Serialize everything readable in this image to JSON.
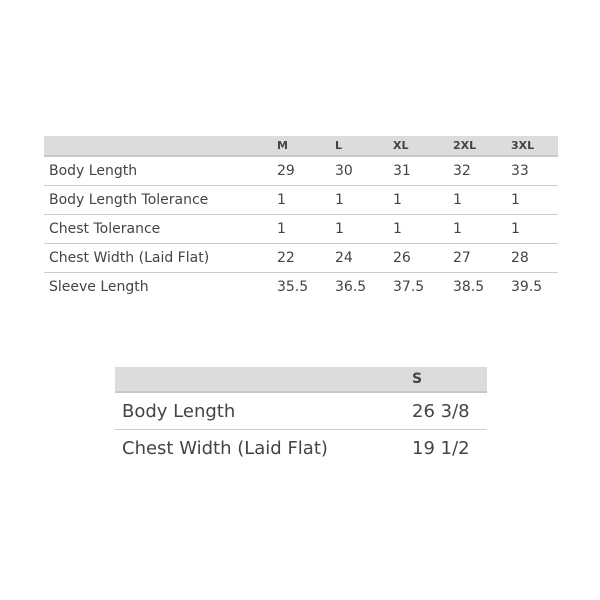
{
  "table1": {
    "headers": [
      "",
      "M",
      "L",
      "XL",
      "2XL",
      "3XL"
    ],
    "rows": [
      {
        "label": "Body Length",
        "values": [
          "29",
          "30",
          "31",
          "32",
          "33"
        ]
      },
      {
        "label": "Body Length Tolerance",
        "values": [
          "1",
          "1",
          "1",
          "1",
          "1"
        ]
      },
      {
        "label": "Chest Tolerance",
        "values": [
          "1",
          "1",
          "1",
          "1",
          "1"
        ]
      },
      {
        "label": "Chest Width (Laid Flat)",
        "values": [
          "22",
          "24",
          "26",
          "27",
          "28"
        ]
      },
      {
        "label": "Sleeve Length",
        "values": [
          "35.5",
          "36.5",
          "37.5",
          "38.5",
          "39.5"
        ]
      }
    ]
  },
  "table2": {
    "headers": [
      "",
      "S"
    ],
    "rows": [
      {
        "label": "Body Length",
        "values": [
          "26 3/8"
        ]
      },
      {
        "label": "Chest Width (Laid Flat)",
        "values": [
          "19 1/2"
        ]
      }
    ]
  }
}
